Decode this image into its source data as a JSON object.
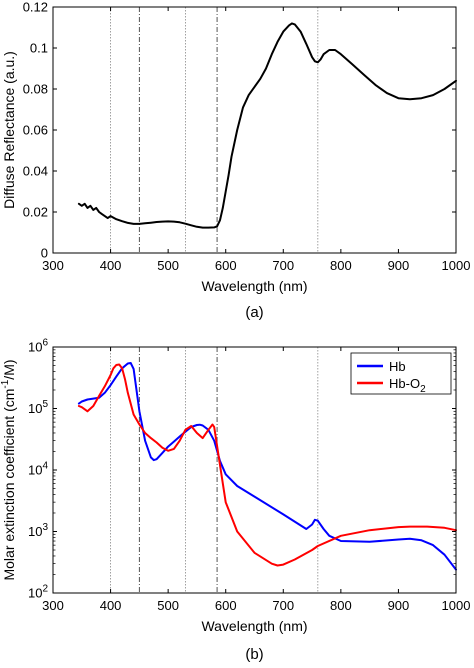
{
  "chart_data": [
    {
      "panel": "(a)",
      "type": "line",
      "xlabel": "Wavelength (nm)",
      "ylabel": "Diffuse Reflectance (a.u.)",
      "xlim": [
        300,
        1000
      ],
      "ylim": [
        0,
        0.12
      ],
      "yscale": "linear",
      "x_ticks": [
        300,
        400,
        500,
        600,
        700,
        800,
        900,
        1000
      ],
      "y_ticks": [
        0,
        0.02,
        0.04,
        0.06,
        0.08,
        0.1,
        0.12
      ],
      "y_tick_labels": [
        "0",
        "0.02",
        "0.04",
        "0.06",
        "0.08",
        "0.1",
        "0.12"
      ],
      "grid": false,
      "series": [
        {
          "color": "#000000",
          "x": [
            345,
            350,
            355,
            360,
            365,
            370,
            375,
            380,
            385,
            390,
            395,
            400,
            410,
            420,
            430,
            440,
            450,
            460,
            470,
            480,
            490,
            500,
            510,
            520,
            530,
            540,
            550,
            560,
            570,
            580,
            585,
            590,
            595,
            600,
            605,
            610,
            620,
            630,
            640,
            650,
            660,
            670,
            680,
            690,
            700,
            710,
            715,
            720,
            730,
            740,
            750,
            755,
            760,
            765,
            770,
            780,
            790,
            800,
            820,
            840,
            860,
            880,
            900,
            920,
            940,
            960,
            980,
            1000
          ],
          "y": [
            0.024,
            0.023,
            0.024,
            0.022,
            0.023,
            0.021,
            0.022,
            0.02,
            0.019,
            0.018,
            0.017,
            0.018,
            0.0165,
            0.0155,
            0.0147,
            0.0142,
            0.0142,
            0.0145,
            0.0148,
            0.0151,
            0.0153,
            0.0154,
            0.0153,
            0.015,
            0.0143,
            0.0135,
            0.0128,
            0.0124,
            0.0124,
            0.0125,
            0.013,
            0.016,
            0.022,
            0.03,
            0.038,
            0.047,
            0.06,
            0.071,
            0.077,
            0.081,
            0.085,
            0.09,
            0.097,
            0.103,
            0.108,
            0.111,
            0.112,
            0.1115,
            0.108,
            0.102,
            0.0955,
            0.0935,
            0.093,
            0.0945,
            0.097,
            0.099,
            0.099,
            0.097,
            0.092,
            0.087,
            0.082,
            0.078,
            0.0755,
            0.075,
            0.0755,
            0.077,
            0.08,
            0.084
          ]
        }
      ],
      "vlines": [
        {
          "x": 400,
          "style": "dotted"
        },
        {
          "x": 450,
          "style": "dashdot"
        },
        {
          "x": 530,
          "style": "dotted"
        },
        {
          "x": 585,
          "style": "dashdot"
        },
        {
          "x": 760,
          "style": "dotted"
        }
      ]
    },
    {
      "panel": "(b)",
      "type": "line",
      "xlabel": "Wavelength (nm)",
      "ylabel_main": "Molar extinction coefficient (cm",
      "ylabel_sup": "-1",
      "ylabel_end": "/M)",
      "xlim": [
        300,
        1000
      ],
      "ylim": [
        100,
        1000000
      ],
      "yscale": "log",
      "x_ticks": [
        300,
        400,
        500,
        600,
        700,
        800,
        900,
        1000
      ],
      "y_ticks": [
        100,
        1000,
        10000,
        100000,
        1000000
      ],
      "y_tick_exps": [
        "2",
        "3",
        "4",
        "5",
        "6"
      ],
      "y_tick_base": "10",
      "grid": false,
      "legend_position": "top-right",
      "series": [
        {
          "name": "Hb",
          "color": "#0000ff",
          "x": [
            345,
            350,
            360,
            370,
            380,
            390,
            400,
            410,
            420,
            430,
            435,
            440,
            445,
            450,
            460,
            470,
            475,
            480,
            490,
            500,
            510,
            520,
            530,
            540,
            550,
            555,
            560,
            570,
            580,
            590,
            600,
            620,
            650,
            700,
            740,
            750,
            755,
            760,
            770,
            780,
            800,
            850,
            900,
            920,
            940,
            960,
            980,
            1000
          ],
          "y": [
            120000,
            130000,
            140000,
            145000,
            150000,
            180000,
            240000,
            330000,
            450000,
            540000,
            550000,
            440000,
            200000,
            90000,
            30000,
            16000,
            14500,
            15000,
            19000,
            24000,
            29000,
            35000,
            42000,
            50000,
            54000,
            54500,
            53000,
            45000,
            30000,
            14000,
            8500,
            5500,
            3700,
            1900,
            1100,
            1300,
            1550,
            1500,
            1100,
            850,
            700,
            680,
            740,
            760,
            720,
            600,
            420,
            240
          ]
        },
        {
          "name": "Hb-O",
          "name_sub": "2",
          "color": "#ff0000",
          "x": [
            345,
            350,
            360,
            370,
            380,
            390,
            400,
            405,
            410,
            415,
            420,
            425,
            430,
            440,
            450,
            460,
            470,
            480,
            490,
            500,
            510,
            520,
            530,
            540,
            550,
            560,
            570,
            577,
            580,
            590,
            600,
            620,
            650,
            680,
            690,
            700,
            720,
            750,
            760,
            800,
            850,
            900,
            920,
            950,
            980,
            1000
          ],
          "y": [
            110000,
            105000,
            90000,
            110000,
            160000,
            230000,
            350000,
            450000,
            510000,
            520000,
            450000,
            300000,
            180000,
            80000,
            55000,
            40000,
            33000,
            28000,
            23000,
            20500,
            22000,
            30000,
            45000,
            52000,
            40000,
            33000,
            45000,
            55000,
            50000,
            12000,
            3000,
            1000,
            450,
            300,
            280,
            290,
            350,
            500,
            580,
            850,
            1050,
            1180,
            1200,
            1200,
            1150,
            1050
          ]
        }
      ],
      "vlines": [
        {
          "x": 400,
          "style": "dotted"
        },
        {
          "x": 450,
          "style": "dashdot"
        },
        {
          "x": 530,
          "style": "dotted"
        },
        {
          "x": 585,
          "style": "dashdot"
        },
        {
          "x": 760,
          "style": "dotted"
        }
      ]
    }
  ]
}
